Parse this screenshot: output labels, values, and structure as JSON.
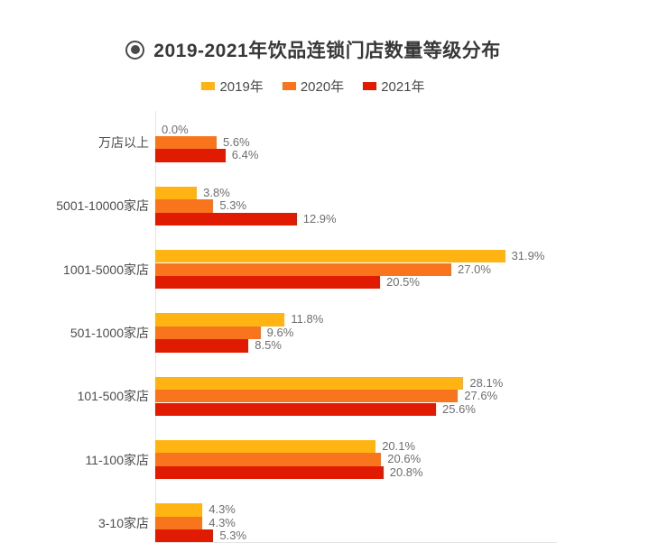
{
  "title": {
    "icon": "bullseye-icon",
    "text": "2019-2021年饮品连锁门店数量等级分布"
  },
  "legend": [
    {
      "label": "2019年",
      "color": "#FFB414"
    },
    {
      "label": "2020年",
      "color": "#F8751D"
    },
    {
      "label": "2021年",
      "color": "#E11B02"
    }
  ],
  "colors": {
    "series_2019": "#FFB414",
    "series_2020": "#F8751D",
    "series_2021": "#E11B02",
    "axis_line": "#e4e4e4",
    "title_text": "#383838",
    "category_text": "#4d4d4d",
    "value_text": "#6e6e6e"
  },
  "chart_data": {
    "type": "bar",
    "orientation": "horizontal",
    "title": "2019-2021年饮品连锁门店数量等级分布",
    "categories": [
      "万店以上",
      "5001-10000家店",
      "1001-5000家店",
      "501-1000家店",
      "101-500家店",
      "11-100家店",
      "3-10家店"
    ],
    "series": [
      {
        "name": "2019年",
        "color": "#FFB414",
        "values": [
          0.0,
          3.8,
          31.9,
          11.8,
          28.1,
          20.1,
          4.3
        ]
      },
      {
        "name": "2020年",
        "color": "#F8751D",
        "values": [
          5.6,
          5.3,
          27.0,
          9.6,
          27.6,
          20.6,
          4.3
        ]
      },
      {
        "name": "2021年",
        "color": "#E11B02",
        "values": [
          6.4,
          12.9,
          20.5,
          8.5,
          25.6,
          20.8,
          5.3
        ]
      }
    ],
    "value_suffix": "%",
    "value_decimals": 1,
    "xlim": [
      0,
      36.6
    ],
    "grid": false,
    "legend_position": "top",
    "xlabel": "",
    "ylabel": ""
  }
}
